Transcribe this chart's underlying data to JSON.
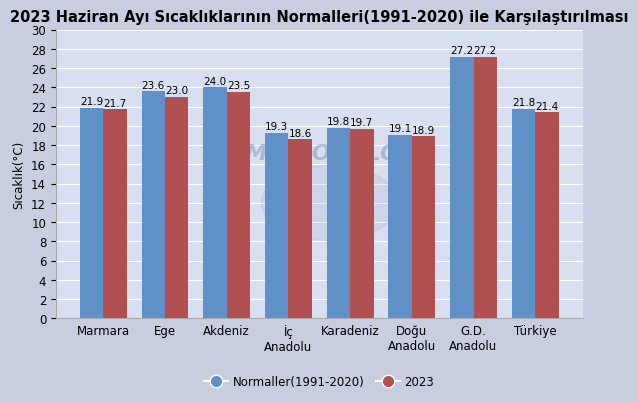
{
  "title": "2023 Haziran Ayı Sıcaklıklarının Normalleri(1991-2020) ile Karşılaştırılması",
  "categories": [
    "Marmara",
    "Ege",
    "Akdeniz",
    "İç\nAnadolu",
    "Karadeniz",
    "Doğu\nAnadolu",
    "G.D.\nAnadolu",
    "Türkiye"
  ],
  "normals": [
    21.9,
    23.6,
    24.0,
    19.3,
    19.8,
    19.1,
    27.2,
    21.8
  ],
  "values_2023": [
    21.7,
    23.0,
    23.5,
    18.6,
    19.7,
    18.9,
    27.2,
    21.4
  ],
  "bar_color_normal": "#6090c8",
  "bar_color_2023": "#b05050",
  "ylabel": "Sıcaklık(°C)",
  "ylim": [
    0,
    30
  ],
  "yticks": [
    0,
    2,
    4,
    6,
    8,
    10,
    12,
    14,
    16,
    18,
    20,
    22,
    24,
    26,
    28,
    30
  ],
  "legend_normal": "Normaller(1991-2020)",
  "legend_2023": "2023",
  "bg_color": "#c8cedf",
  "plot_bg_color": "#d8dff0",
  "title_fontsize": 10.5,
  "label_fontsize": 8.5,
  "tick_fontsize": 8.5,
  "bar_label_fontsize": 7.5,
  "bar_width": 0.38,
  "watermark": "METEOROLOJİ"
}
